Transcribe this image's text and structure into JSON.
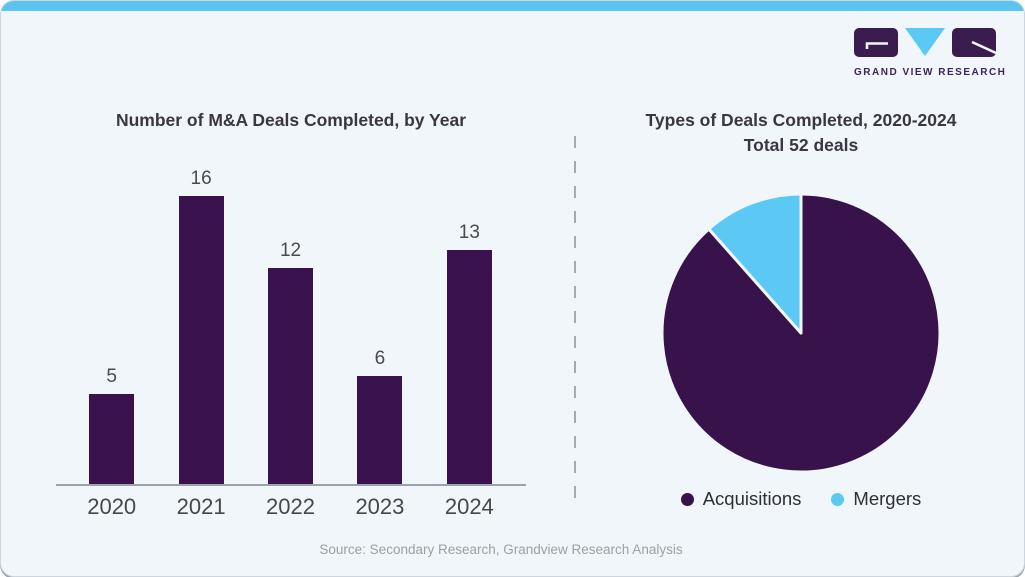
{
  "page": {
    "background_color": "#f1f6fa",
    "topbar_color": "#5cc3ee",
    "accent_purple": "#3a124e",
    "accent_blue": "#5bc9f4"
  },
  "logo": {
    "text": "GRAND VIEW RESEARCH"
  },
  "footer": {
    "source": "Source: Secondary Research, Grandview Research Analysis"
  },
  "chart_data": [
    {
      "type": "bar",
      "title": "Number of M&A Deals Completed, by Year",
      "categories": [
        "2020",
        "2021",
        "2022",
        "2023",
        "2024"
      ],
      "values": [
        5,
        16,
        12,
        6,
        13
      ],
      "xlabel": "",
      "ylabel": "",
      "ylim": [
        0,
        16
      ],
      "grid": false,
      "value_labels": true,
      "bar_color": "#3a124e"
    },
    {
      "type": "pie",
      "title": "Types of Deals Completed, 2020-2024",
      "subtitle": "Total 52 deals",
      "total": 52,
      "labels": [
        "Acquisitions",
        "Mergers"
      ],
      "values": [
        46,
        6
      ],
      "colors": [
        "#38124a",
        "#5bc9f4"
      ],
      "start_angle_deg": 0,
      "direction": "clockwise",
      "legend_position": "bottom"
    }
  ]
}
